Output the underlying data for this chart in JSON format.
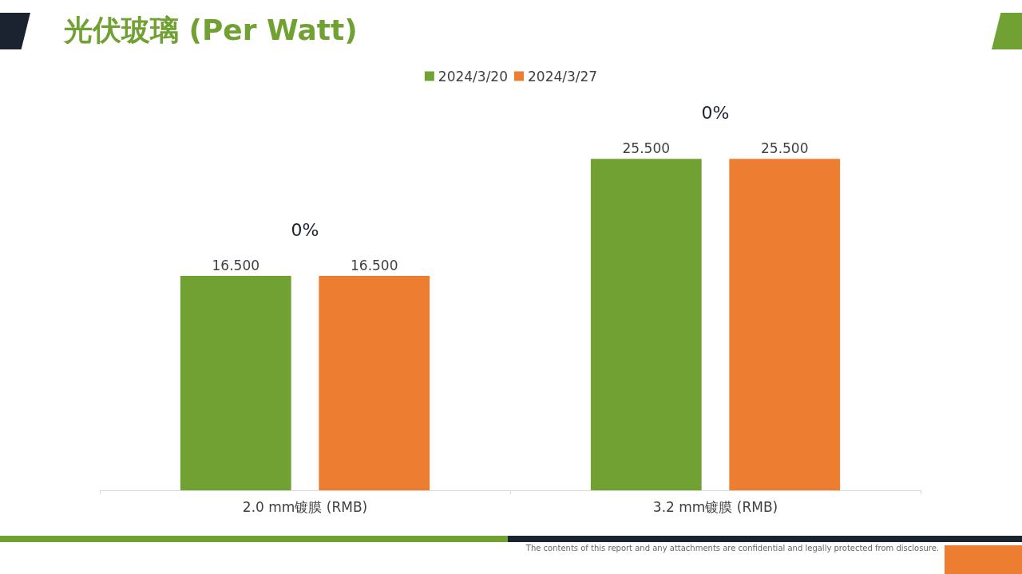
{
  "chart_data": {
    "type": "bar",
    "title": "光伏玻璃 (Per Watt)",
    "categories": [
      "2.0 mm镀膜 (RMB)",
      "3.2 mm镀膜 (RMB)"
    ],
    "series": [
      {
        "name": "2024/3/20",
        "color": "#70a132",
        "values": [
          16.5,
          25.5
        ],
        "value_labels": [
          "16.500",
          "25.500"
        ]
      },
      {
        "name": "2024/3/27",
        "color": "#ed7d31",
        "values": [
          16.5,
          25.5
        ],
        "value_labels": [
          "16.500",
          "25.500"
        ]
      }
    ],
    "legend": "top",
    "annotations": [
      "0%",
      "0%",
      "The contents of this report and any attachments are confidential and legally protected from disclosure."
    ]
  }
}
